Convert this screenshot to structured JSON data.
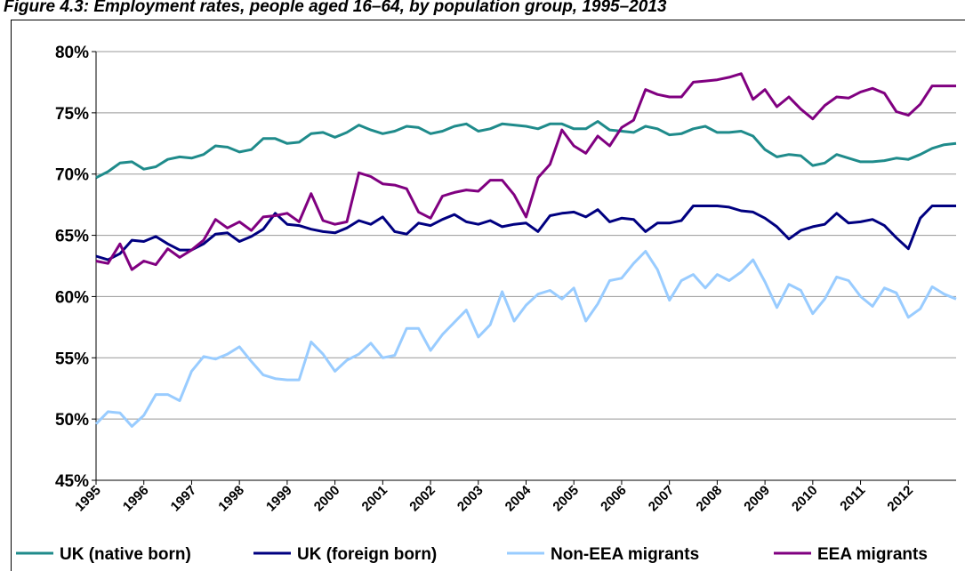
{
  "chart_data": {
    "type": "line",
    "title": "Figure 4.3: Employment rates, people aged 16–64, by population group, 1995–2013",
    "categories": [
      "1995",
      null,
      null,
      null,
      "1996",
      null,
      null,
      null,
      "1997",
      null,
      null,
      null,
      "1998",
      null,
      null,
      null,
      "1999",
      null,
      null,
      null,
      "2000",
      null,
      null,
      null,
      "2001",
      null,
      null,
      null,
      "2002",
      null,
      null,
      null,
      "2003",
      null,
      null,
      null,
      "2004",
      null,
      null,
      null,
      "2005",
      null,
      null,
      null,
      "2006",
      null,
      null,
      null,
      "2007",
      null,
      null,
      null,
      "2008",
      null,
      null,
      null,
      "2009",
      null,
      null,
      null,
      "2010",
      null,
      null,
      null,
      "2011",
      null,
      null,
      null,
      "2012",
      null,
      null,
      null,
      null
    ],
    "ylim": [
      45,
      80
    ],
    "yticks": [
      {
        "value": 45,
        "label": "45%"
      },
      {
        "value": 50,
        "label": "50%"
      },
      {
        "value": 55,
        "label": "55%"
      },
      {
        "value": 60,
        "label": "60%"
      },
      {
        "value": 65,
        "label": "65%"
      },
      {
        "value": 70,
        "label": "70%"
      },
      {
        "value": 75,
        "label": "75%"
      },
      {
        "value": 80,
        "label": "80%"
      }
    ],
    "grid": true,
    "legend": "bottom",
    "series": [
      {
        "name": "UK (native born)",
        "color": "#1f8b8b",
        "values": [
          69.7,
          70.2,
          70.9,
          71.0,
          70.4,
          70.6,
          71.2,
          71.4,
          71.3,
          71.6,
          72.3,
          72.2,
          71.8,
          72.0,
          72.9,
          72.9,
          72.5,
          72.6,
          73.3,
          73.4,
          73.0,
          73.4,
          74.0,
          73.6,
          73.3,
          73.5,
          73.9,
          73.8,
          73.3,
          73.5,
          73.9,
          74.1,
          73.5,
          73.7,
          74.1,
          74.0,
          73.9,
          73.7,
          74.1,
          74.1,
          73.7,
          73.7,
          74.3,
          73.6,
          73.5,
          73.4,
          73.9,
          73.7,
          73.2,
          73.3,
          73.7,
          73.9,
          73.4,
          73.4,
          73.5,
          73.1,
          72.0,
          71.4,
          71.6,
          71.5,
          70.7,
          70.9,
          71.6,
          71.3,
          71.0,
          71.0,
          71.1,
          71.3,
          71.2,
          71.6,
          72.1,
          72.4,
          72.5
        ]
      },
      {
        "name": "UK (foreign born)",
        "color": "#000080",
        "values": [
          63.3,
          63.0,
          63.5,
          64.6,
          64.5,
          64.9,
          64.3,
          63.8,
          63.8,
          64.3,
          65.1,
          65.2,
          64.5,
          64.9,
          65.5,
          66.8,
          65.9,
          65.8,
          65.5,
          65.3,
          65.2,
          65.6,
          66.2,
          65.9,
          66.5,
          65.3,
          65.1,
          66.0,
          65.8,
          66.3,
          66.7,
          66.1,
          65.9,
          66.2,
          65.7,
          65.9,
          66.0,
          65.3,
          66.6,
          66.8,
          66.9,
          66.5,
          67.1,
          66.1,
          66.4,
          66.3,
          65.3,
          66.0,
          66.0,
          66.2,
          67.4,
          67.4,
          67.4,
          67.3,
          67.0,
          66.9,
          66.4,
          65.7,
          64.7,
          65.4,
          65.7,
          65.9,
          66.8,
          66.0,
          66.1,
          66.3,
          65.8,
          64.8,
          63.9,
          66.4,
          67.4,
          67.4,
          67.4
        ]
      },
      {
        "name": "Non-EEA migrants",
        "color": "#99ccff",
        "values": [
          49.6,
          50.6,
          50.5,
          49.4,
          50.3,
          52.0,
          52.0,
          51.5,
          53.9,
          55.1,
          54.9,
          55.3,
          55.9,
          54.7,
          53.6,
          53.3,
          53.2,
          53.2,
          56.3,
          55.3,
          53.9,
          54.8,
          55.3,
          56.2,
          55.0,
          55.2,
          57.4,
          57.4,
          55.6,
          56.9,
          57.9,
          58.9,
          56.7,
          57.7,
          60.4,
          58.0,
          59.3,
          60.2,
          60.5,
          59.8,
          60.7,
          58.0,
          59.4,
          61.3,
          61.5,
          62.7,
          63.7,
          62.2,
          59.7,
          61.3,
          61.8,
          60.7,
          61.8,
          61.3,
          62.0,
          63.0,
          61.2,
          59.1,
          61.0,
          60.5,
          58.6,
          59.8,
          61.6,
          61.3,
          60.0,
          59.2,
          60.7,
          60.3,
          58.3,
          59.0,
          60.8,
          60.2,
          59.8
        ]
      },
      {
        "name": "EEA migrants",
        "color": "#800080",
        "values": [
          62.9,
          62.7,
          64.3,
          62.2,
          62.9,
          62.6,
          63.9,
          63.2,
          63.8,
          64.6,
          66.3,
          65.6,
          66.1,
          65.4,
          66.5,
          66.6,
          66.8,
          66.1,
          68.4,
          66.2,
          65.9,
          66.1,
          70.1,
          69.8,
          69.2,
          69.1,
          68.8,
          66.9,
          66.4,
          68.2,
          68.5,
          68.7,
          68.6,
          69.5,
          69.5,
          68.3,
          66.5,
          69.7,
          70.8,
          73.6,
          72.3,
          71.7,
          73.1,
          72.3,
          73.8,
          74.4,
          76.9,
          76.5,
          76.3,
          76.3,
          77.5,
          77.6,
          77.7,
          77.9,
          78.2,
          76.1,
          76.9,
          75.5,
          76.3,
          75.3,
          74.5,
          75.6,
          76.3,
          76.2,
          76.7,
          77.0,
          76.6,
          75.1,
          74.8,
          75.7,
          77.2,
          77.2,
          77.2
        ]
      }
    ]
  }
}
